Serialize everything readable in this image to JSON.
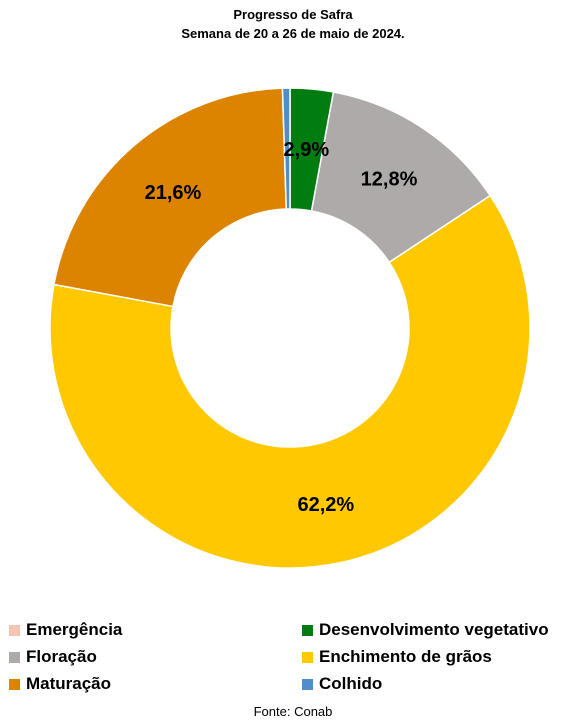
{
  "chart_data": {
    "type": "pie",
    "title": "Progresso de Safra",
    "subtitle": "Semana de 20 a 26 de maio de 2024.",
    "donut": true,
    "legend_position": "bottom",
    "slices": [
      {
        "label": "Emergência",
        "value": 0.0,
        "color": "#f4c6b2",
        "data_label": ""
      },
      {
        "label": "Desenvolvimento vegetativo",
        "value": 2.9,
        "color": "#007c10",
        "data_label": "2,9%"
      },
      {
        "label": "Floração",
        "value": 12.8,
        "color": "#aeaaaa",
        "data_label": "12,8%"
      },
      {
        "label": "Enchimento de grãos",
        "value": 62.2,
        "color": "#ffc800",
        "data_label": "62,2%"
      },
      {
        "label": "Maturação",
        "value": 21.6,
        "color": "#dc8400",
        "data_label": "21,6%"
      },
      {
        "label": "Colhido",
        "value": 0.5,
        "color": "#4f8ec8",
        "data_label": ""
      }
    ]
  },
  "source": "Fonte: Conab"
}
